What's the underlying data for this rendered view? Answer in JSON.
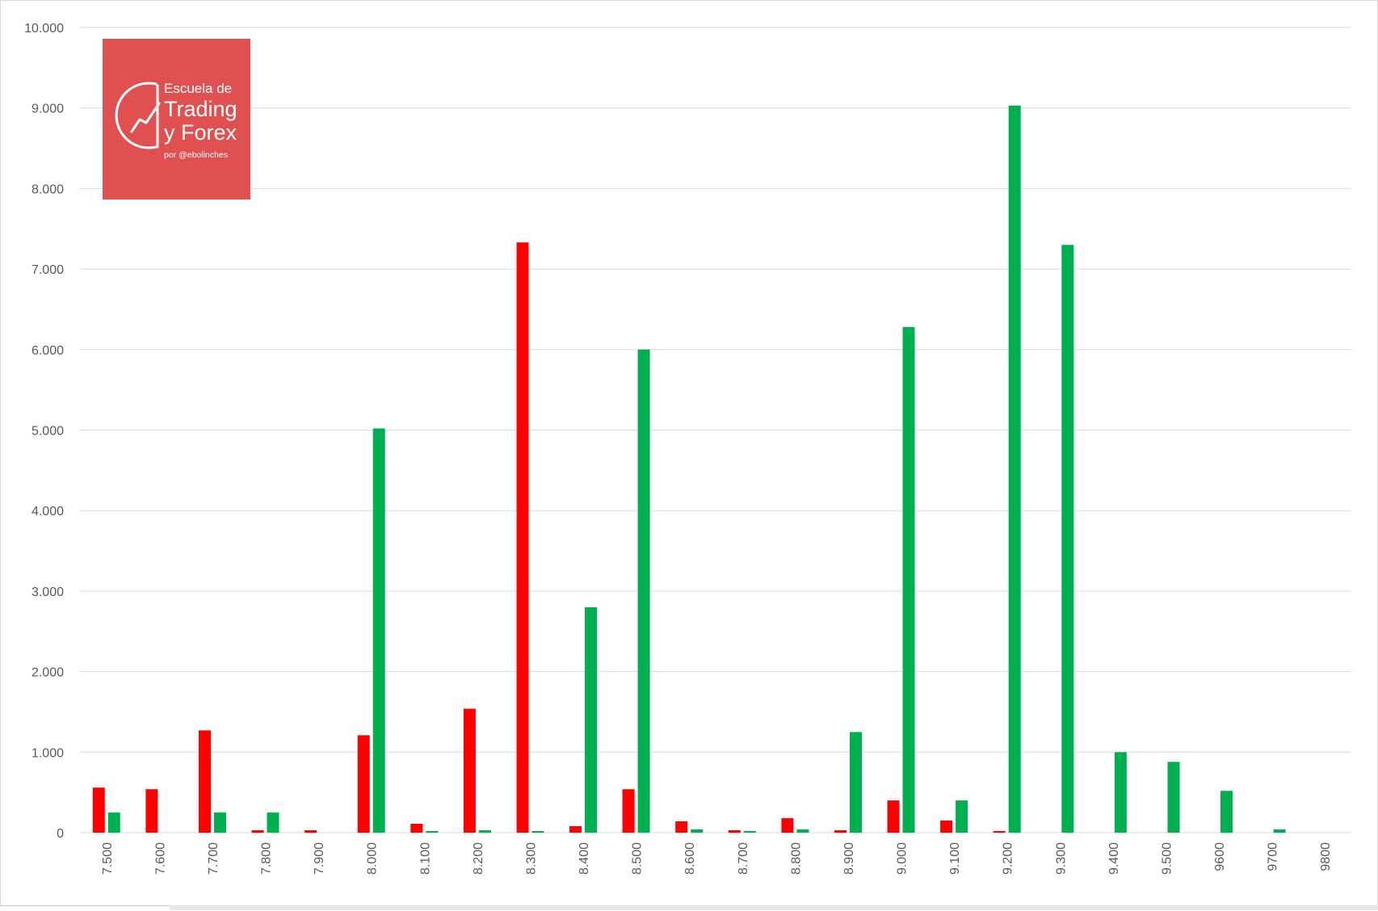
{
  "chart_data": {
    "type": "bar",
    "categories": [
      "7.500",
      "7.600",
      "7.700",
      "7.800",
      "7.900",
      "8.000",
      "8.100",
      "8.200",
      "8.300",
      "8.400",
      "8.500",
      "8.600",
      "8.700",
      "8.800",
      "8.900",
      "9.000",
      "9.100",
      "9.200",
      "9.300",
      "9.400",
      "9.500",
      "9600",
      "9700",
      "9800"
    ],
    "series": [
      {
        "color": "#ff0000",
        "values": [
          560,
          540,
          1270,
          30,
          30,
          1210,
          110,
          1540,
          7330,
          80,
          540,
          140,
          30,
          180,
          30,
          400,
          150,
          20,
          0,
          0,
          0,
          0,
          0,
          0
        ]
      },
      {
        "color": "#00b050",
        "values": [
          250,
          0,
          250,
          250,
          0,
          5020,
          20,
          30,
          20,
          2800,
          6000,
          40,
          20,
          40,
          1250,
          6280,
          400,
          9030,
          7300,
          1000,
          880,
          520,
          40,
          0
        ]
      }
    ],
    "ylim": [
      0,
      10000
    ],
    "yticks": [
      0,
      1000,
      2000,
      3000,
      4000,
      5000,
      6000,
      7000,
      8000,
      9000,
      10000
    ],
    "ytick_labels": [
      "0",
      "1.000",
      "2.000",
      "3.000",
      "4.000",
      "5.000",
      "6.000",
      "7.000",
      "8.000",
      "9.000",
      "10.000"
    ],
    "grid": true,
    "legend": "none",
    "gridline_color": "#d9d9d9"
  },
  "logo": {
    "background": "#e05050",
    "line1": "Escuela de",
    "line2": "Trading",
    "line3": "y Forex",
    "line4": "por @ebolinches"
  }
}
